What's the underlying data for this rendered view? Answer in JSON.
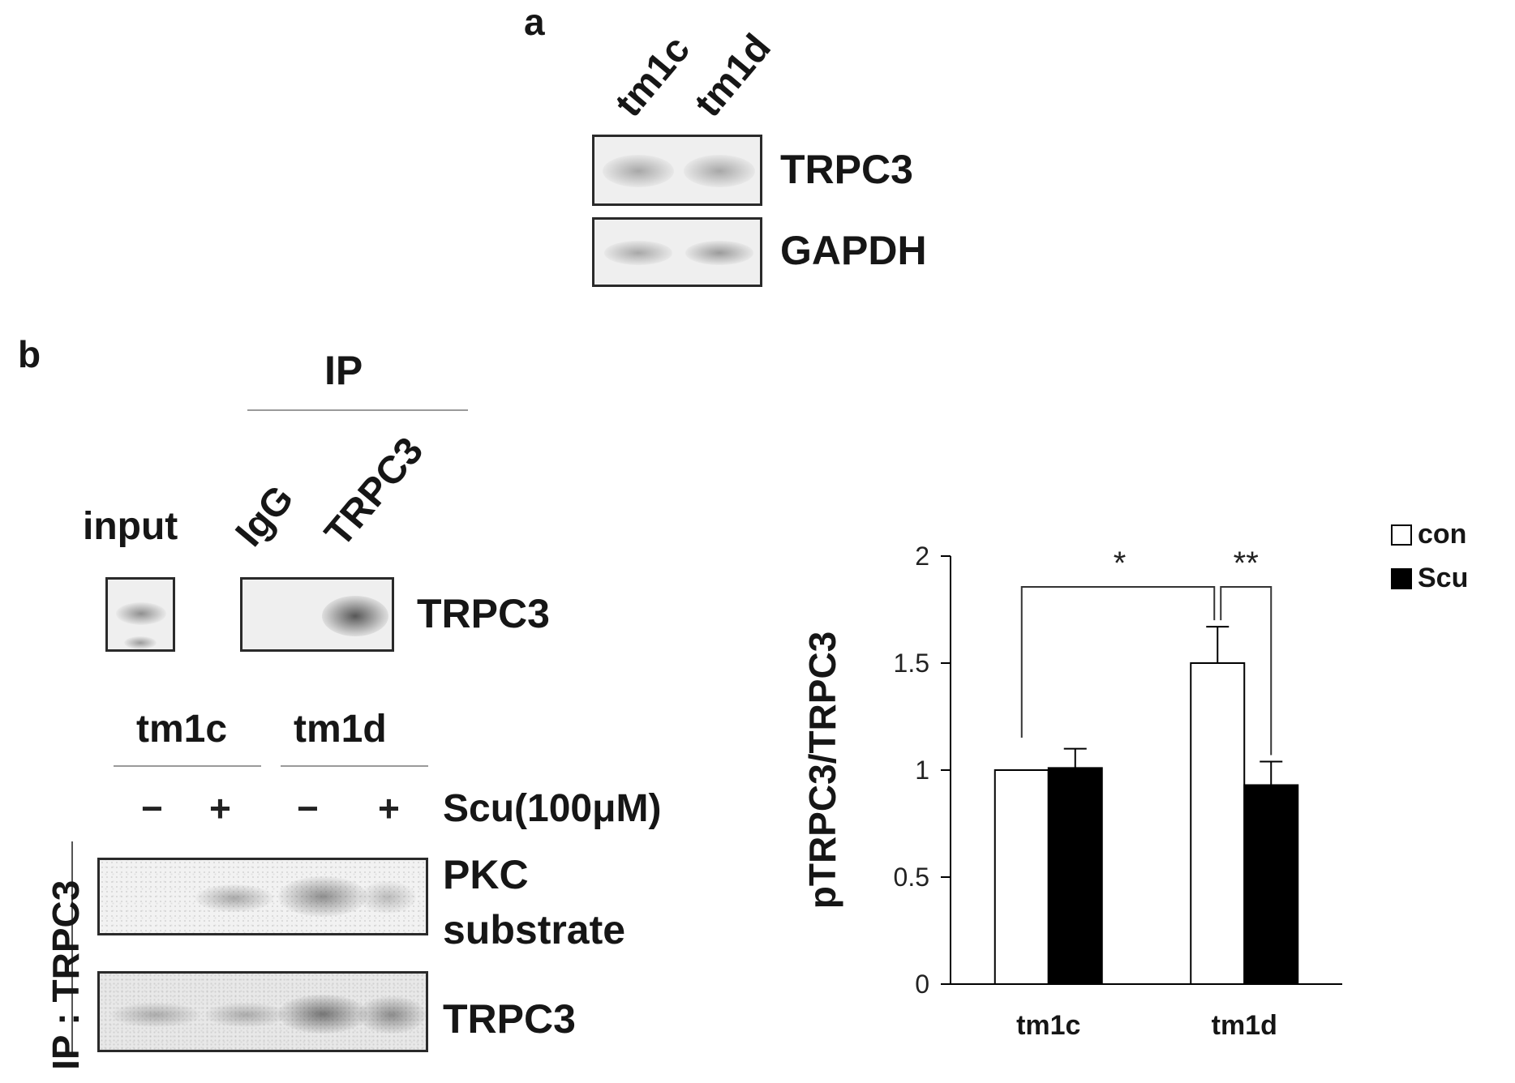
{
  "panel_a": {
    "letter": "a",
    "lanes": [
      "tm1c",
      "tm1d"
    ],
    "blots": [
      {
        "label": "TRPC3"
      },
      {
        "label": "GAPDH"
      }
    ]
  },
  "panel_b": {
    "letter": "b",
    "ip_header": "IP",
    "input_label": "input",
    "ip_lanes": [
      "IgG",
      "TRPC3"
    ],
    "ip_blot_label": "TRPC3",
    "group_labels": [
      "tm1c",
      "tm1d"
    ],
    "signs": [
      "−",
      "+",
      "−",
      "+"
    ],
    "treatment_label": "Scu(100μM)",
    "side_label": "IP : TRPC3",
    "blot_labels": [
      "PKC",
      "substrate",
      "TRPC3"
    ]
  },
  "chart_data": {
    "type": "bar",
    "categories": [
      "tm1c",
      "tm1d"
    ],
    "series": [
      {
        "name": "con",
        "values": [
          1.0,
          1.5
        ],
        "errors": [
          0.0,
          0.17
        ],
        "color": "#ffffff"
      },
      {
        "name": "Scu",
        "values": [
          1.01,
          0.93
        ],
        "errors": [
          0.09,
          0.11
        ],
        "color": "#000000"
      }
    ],
    "ylabel": "pTRPC3/TRPC3",
    "ylim": [
      0,
      2
    ],
    "yticks": [
      0,
      0.5,
      1,
      1.5,
      2
    ],
    "ytick_labels": [
      "0",
      "0.5",
      "1",
      "1.5",
      "2"
    ],
    "legend_position": "top-right",
    "annotations": [
      {
        "text": "*",
        "between": "tm1c con vs tm1d con"
      },
      {
        "text": "**",
        "between": "tm1d con vs tm1d Scu"
      }
    ]
  }
}
